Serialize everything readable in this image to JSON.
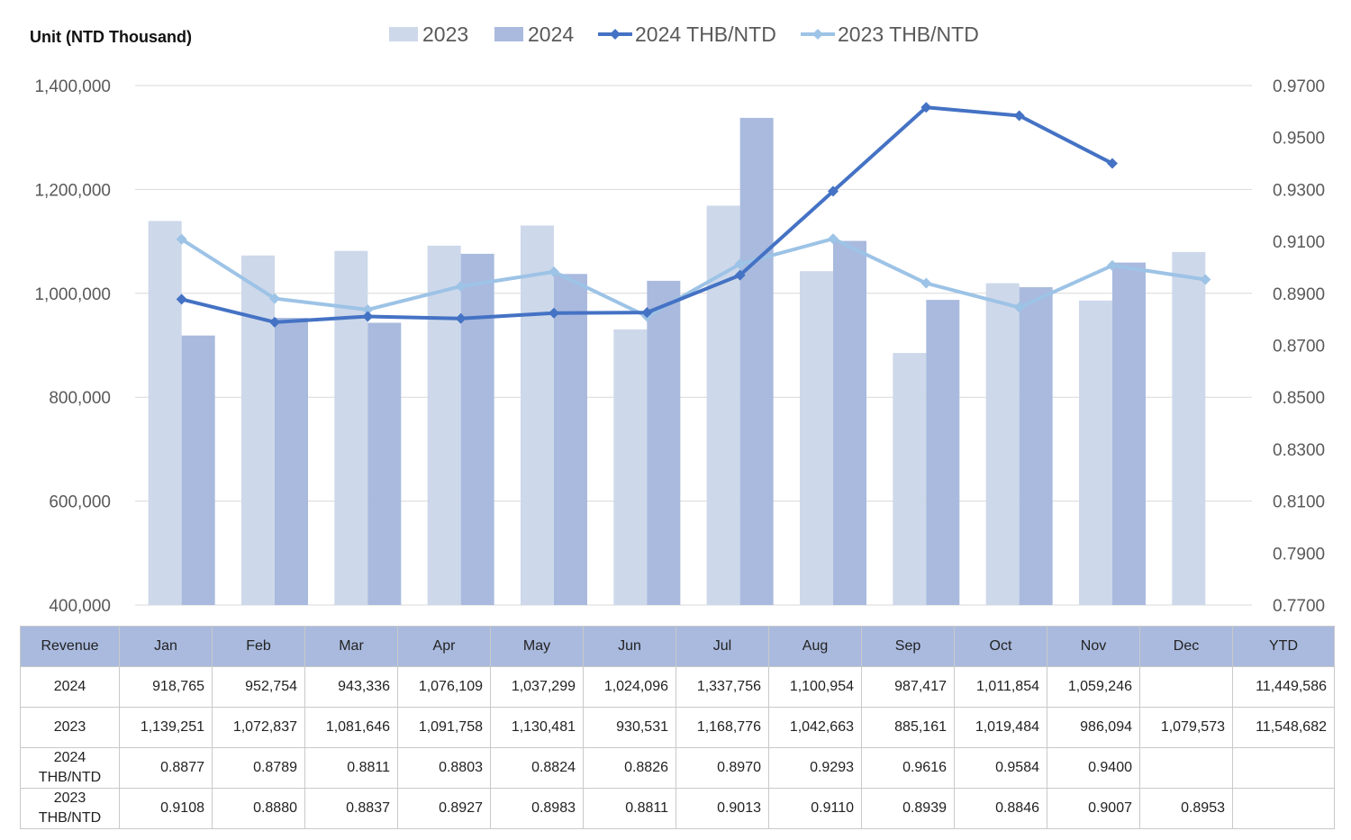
{
  "unit_label": "Unit (NTD  Thousand)",
  "colors": {
    "bar_2023": "#cdd8ea",
    "bar_2024": "#a9bade",
    "line_2024": "#4472c4",
    "line_2023": "#9dc3e6",
    "grid": "#d9d9d9",
    "header_bg": "#a9bade"
  },
  "chart_data": {
    "type": "bar",
    "categories": [
      "Jan",
      "Feb",
      "Mar",
      "Apr",
      "May",
      "Jun",
      "Jul",
      "Aug",
      "Sep",
      "Oct",
      "Nov",
      "Dec"
    ],
    "series": [
      {
        "name": "2023",
        "type": "bar",
        "axis": "left",
        "values": [
          1139251,
          1072837,
          1081646,
          1091758,
          1130481,
          930531,
          1168776,
          1042663,
          885161,
          1019484,
          986094,
          1079573
        ]
      },
      {
        "name": "2024",
        "type": "bar",
        "axis": "left",
        "values": [
          918765,
          952754,
          943336,
          1076109,
          1037299,
          1024096,
          1337756,
          1100954,
          987417,
          1011854,
          1059246,
          null
        ]
      },
      {
        "name": "2024 THB/NTD",
        "type": "line",
        "axis": "right",
        "marker": "diamond",
        "values": [
          0.8877,
          0.8789,
          0.8811,
          0.8803,
          0.8824,
          0.8826,
          0.897,
          0.9293,
          0.9616,
          0.9584,
          0.94,
          null
        ]
      },
      {
        "name": "2023 THB/NTD",
        "type": "line",
        "axis": "right",
        "marker": "diamond",
        "values": [
          0.9108,
          0.888,
          0.8837,
          0.8927,
          0.8983,
          0.8811,
          0.9013,
          0.911,
          0.8939,
          0.8846,
          0.9007,
          0.8953
        ]
      }
    ],
    "left_axis": {
      "min": 400000,
      "max": 1400000,
      "step": 200000,
      "ticks": [
        "400,000",
        "600,000",
        "800,000",
        "1,000,000",
        "1,200,000",
        "1,400,000"
      ]
    },
    "right_axis": {
      "min": 0.77,
      "max": 0.97,
      "step": 0.02,
      "ticks": [
        "0.7700",
        "0.7900",
        "0.8100",
        "0.8300",
        "0.8500",
        "0.8700",
        "0.8900",
        "0.9100",
        "0.9300",
        "0.9500",
        "0.9700"
      ]
    },
    "legend_position": "top",
    "grid": true
  },
  "table": {
    "header": [
      "Revenue",
      "Jan",
      "Feb",
      "Mar",
      "Apr",
      "May",
      "Jun",
      "Jul",
      "Aug",
      "Sep",
      "Oct",
      "Nov",
      "Dec",
      "YTD"
    ],
    "rows": [
      {
        "label": "2024",
        "cells": [
          "918,765",
          "952,754",
          "943,336",
          "1,076,109",
          "1,037,299",
          "1,024,096",
          "1,337,756",
          "1,100,954",
          "987,417",
          "1,011,854",
          "1,059,246",
          "",
          "11,449,586"
        ]
      },
      {
        "label": "2023",
        "cells": [
          "1,139,251",
          "1,072,837",
          "1,081,646",
          "1,091,758",
          "1,130,481",
          "930,531",
          "1,168,776",
          "1,042,663",
          "885,161",
          "1,019,484",
          "986,094",
          "1,079,573",
          "11,548,682"
        ]
      },
      {
        "label": "2024\nTHB/NTD",
        "cells": [
          "0.8877",
          "0.8789",
          "0.8811",
          "0.8803",
          "0.8824",
          "0.8826",
          "0.8970",
          "0.9293",
          "0.9616",
          "0.9584",
          "0.9400",
          "",
          ""
        ]
      },
      {
        "label": "2023\nTHB/NTD",
        "cells": [
          "0.9108",
          "0.8880",
          "0.8837",
          "0.8927",
          "0.8983",
          "0.8811",
          "0.9013",
          "0.9110",
          "0.8939",
          "0.8846",
          "0.9007",
          "0.8953",
          ""
        ]
      }
    ]
  }
}
